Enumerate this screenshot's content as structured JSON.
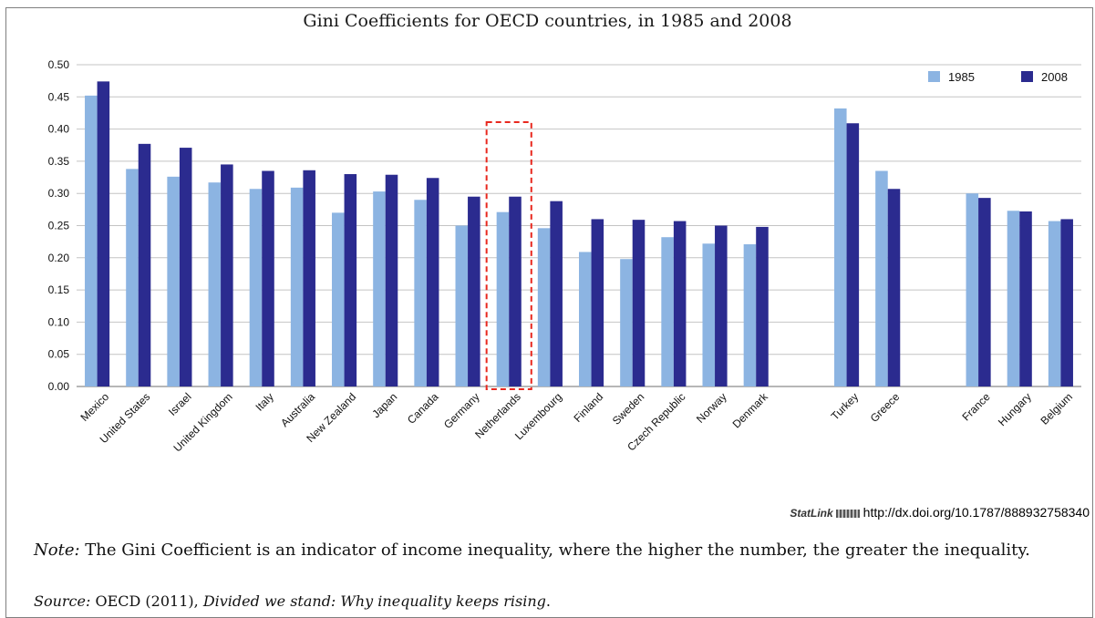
{
  "chart_data": {
    "type": "bar",
    "title": "Gini Coefficients for OECD countries, in 1985 and 2008",
    "xlabel": "",
    "ylabel": "",
    "ylim": [
      0,
      0.5
    ],
    "yticks": [
      "0.00",
      "0.05",
      "0.10",
      "0.15",
      "0.20",
      "0.25",
      "0.30",
      "0.35",
      "0.40",
      "0.45",
      "0.50"
    ],
    "grid": true,
    "legend_position": "top-right",
    "categories": [
      "Mexico",
      "United States",
      "Israel",
      "United Kingdom",
      "Italy",
      "Australia",
      "New Zealand",
      "Japan",
      "Canada",
      "Germany",
      "Netherlands",
      "Luxembourg",
      "Finland",
      "Sweden",
      "Czech Republic",
      "Norway",
      "Denmark",
      "Turkey",
      "Greece",
      "France",
      "Hungary",
      "Belgium"
    ],
    "category_groups": [
      17,
      2,
      3
    ],
    "series": [
      {
        "name": "1985",
        "color": "#8cb4e2",
        "values": [
          0.452,
          0.338,
          0.326,
          0.317,
          0.307,
          0.309,
          0.27,
          0.303,
          0.29,
          0.25,
          0.271,
          0.246,
          0.209,
          0.198,
          0.232,
          0.222,
          0.221,
          0.432,
          0.335,
          0.3,
          0.273,
          0.257
        ]
      },
      {
        "name": "2008",
        "color": "#2b2b8f",
        "values": [
          0.474,
          0.377,
          0.371,
          0.345,
          0.335,
          0.336,
          0.33,
          0.329,
          0.324,
          0.295,
          0.295,
          0.288,
          0.26,
          0.259,
          0.257,
          0.25,
          0.248,
          0.409,
          0.307,
          0.293,
          0.272,
          0.26
        ]
      }
    ],
    "highlighted_category": "Netherlands",
    "highlight_color": "#e8281e"
  },
  "statlink": {
    "brand": "StatLink",
    "url": "http://dx.doi.org/10.1787/888932758340"
  },
  "note": {
    "label": "Note:",
    "text": "The Gini Coefficient is an indicator of income inequality, where the higher the number, the greater the inequality."
  },
  "source": {
    "label": "Source:",
    "before": "OECD (2011),",
    "title": "Divided we stand: Why inequality keeps rising",
    "after": "."
  }
}
